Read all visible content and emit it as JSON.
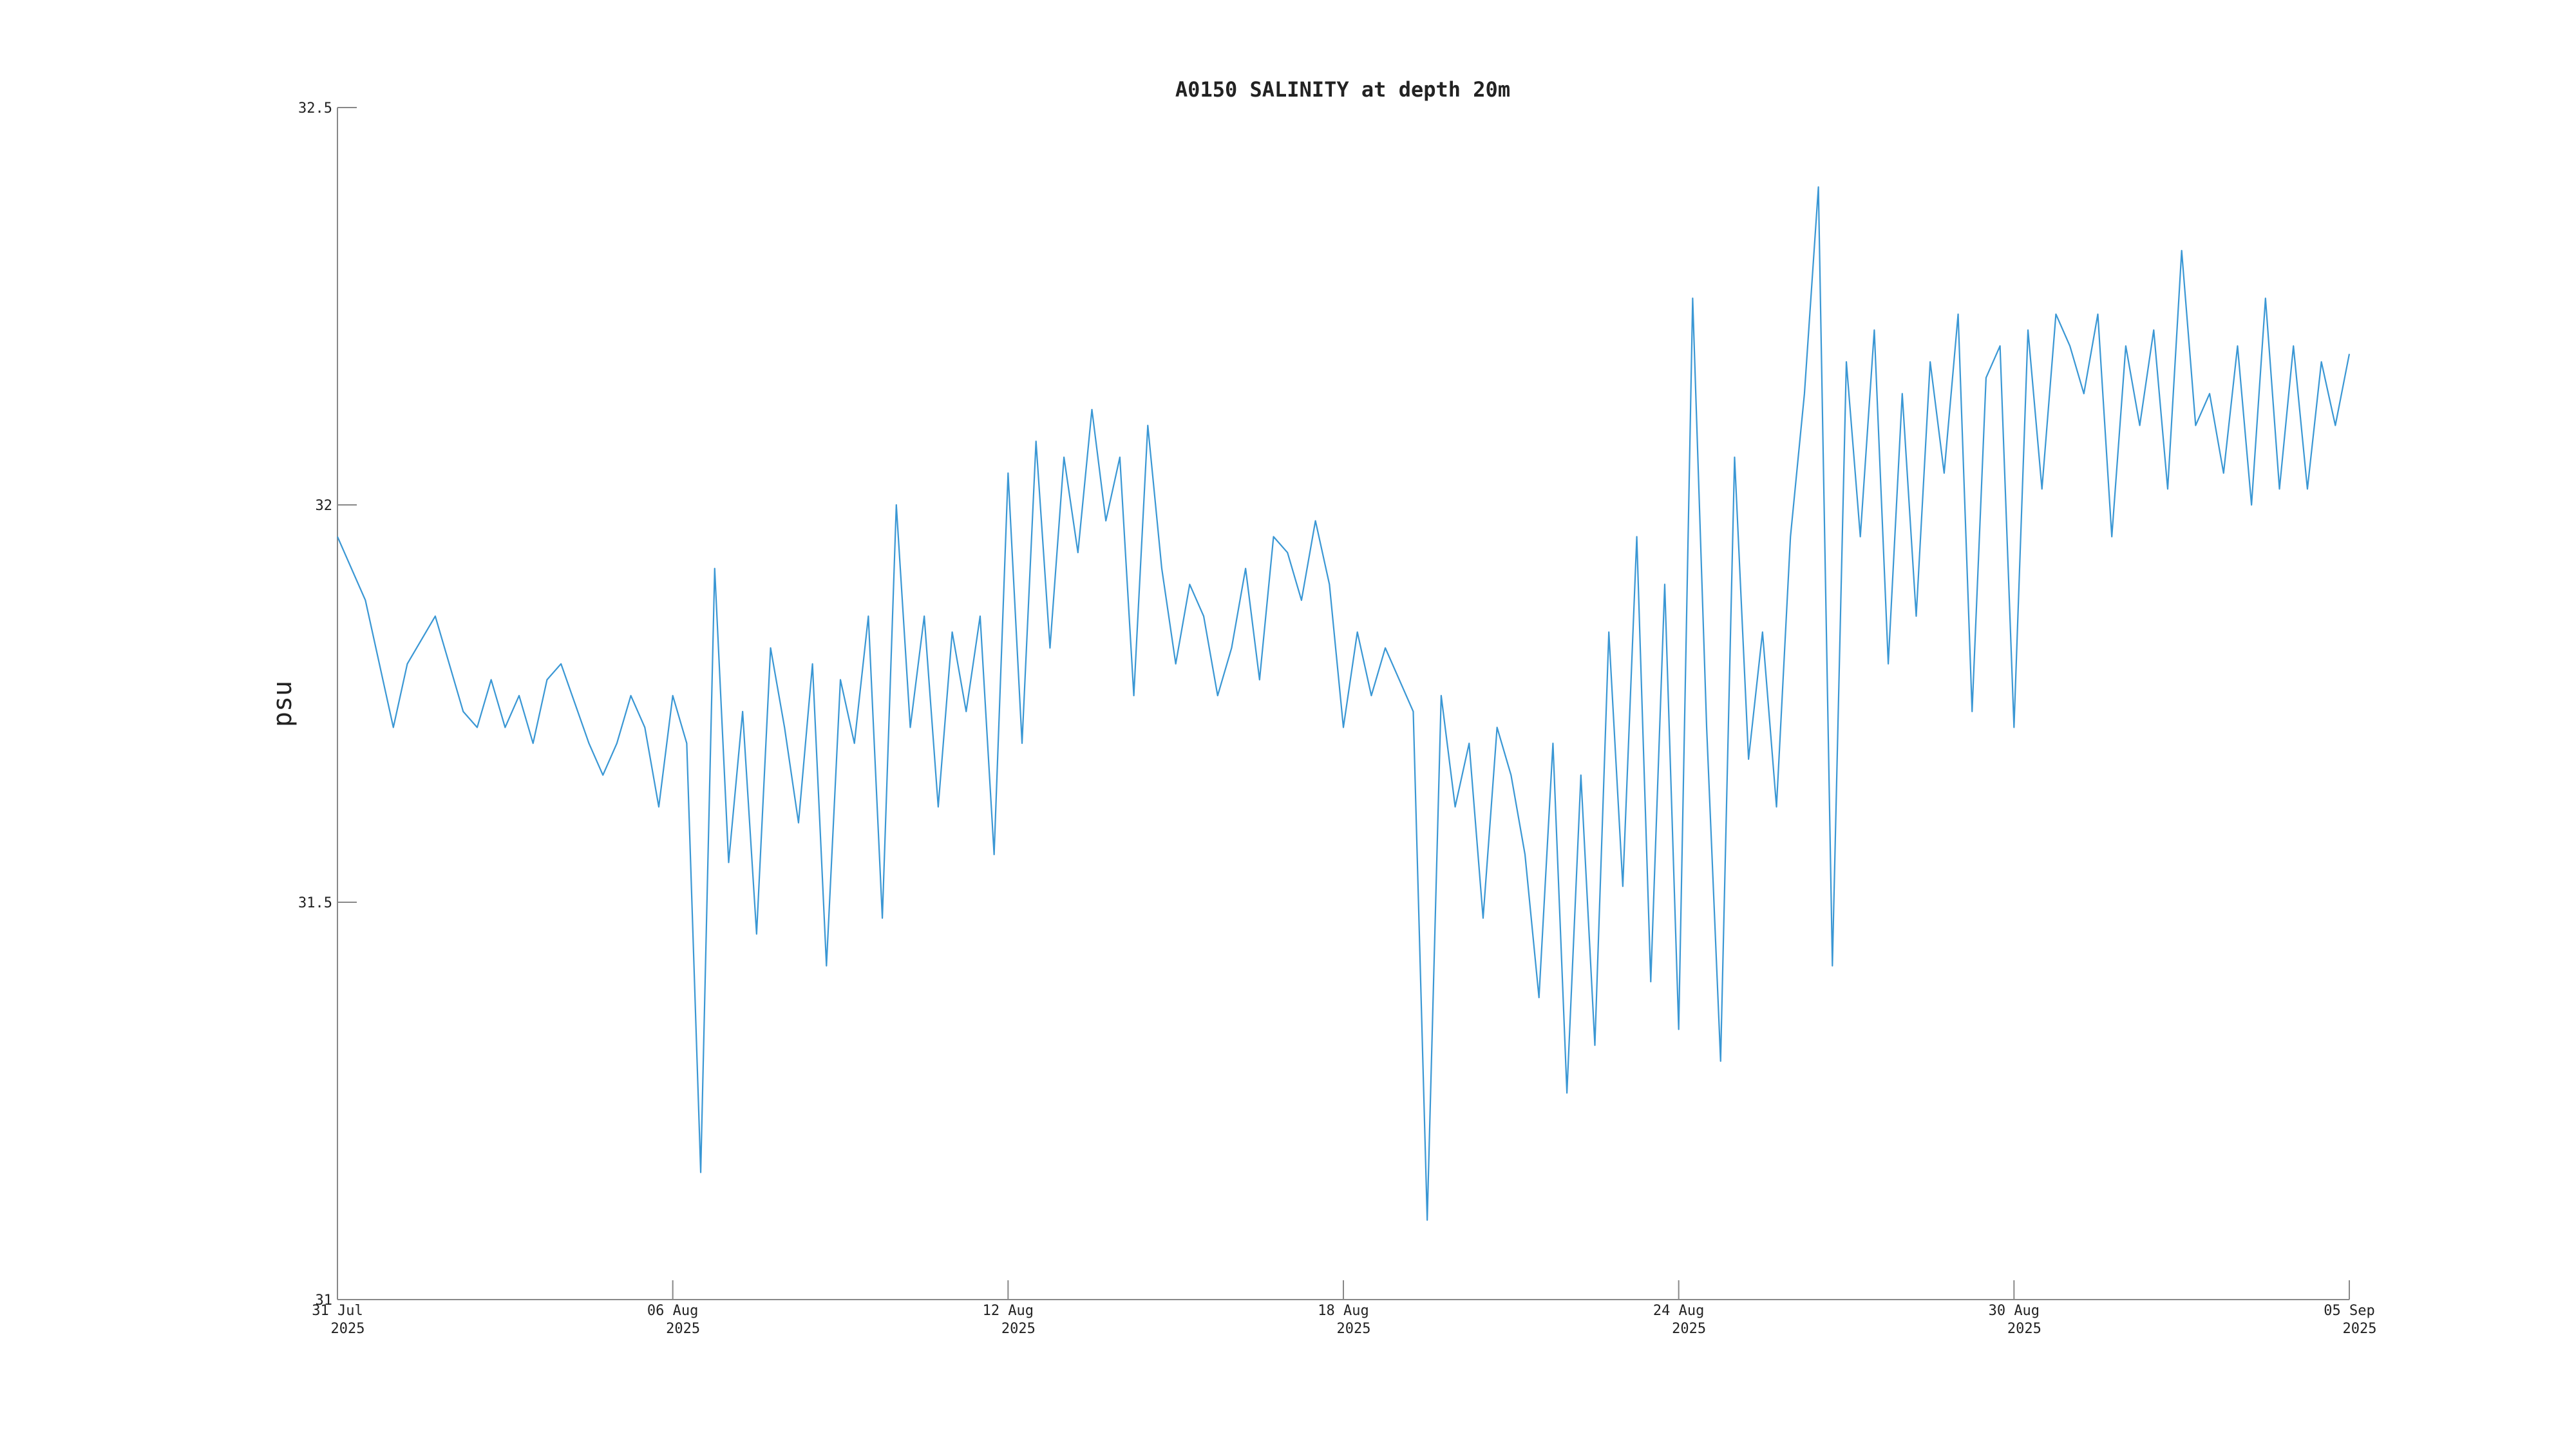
{
  "chart_data": {
    "type": "line",
    "title": "A0150 SALINITY at depth 20m",
    "y_label": "psu",
    "color": "#3a97d4",
    "xlim": [
      "2025-07-31T00:00",
      "2025-09-05T00:00"
    ],
    "xticks": [
      {
        "value": "2025-07-31T00:00",
        "label": [
          "31 Jul",
          "2025"
        ]
      },
      {
        "value": "2025-08-06T00:00",
        "label": [
          "06 Aug",
          "2025"
        ]
      },
      {
        "value": "2025-08-12T00:00",
        "label": [
          "12 Aug",
          "2025"
        ]
      },
      {
        "value": "2025-08-18T00:00",
        "label": [
          "18 Aug",
          "2025"
        ]
      },
      {
        "value": "2025-08-24T00:00",
        "label": [
          "24 Aug",
          "2025"
        ]
      },
      {
        "value": "2025-08-30T00:00",
        "label": [
          "30 Aug",
          "2025"
        ]
      },
      {
        "value": "2025-09-05T00:00",
        "label": [
          "05 Sep",
          "2025"
        ]
      }
    ],
    "ylim": [
      31,
      32.5
    ],
    "yticks": [
      31,
      31.5,
      32,
      32.5
    ],
    "x": [
      "2025-07-31T00:00",
      "2025-07-31T06:00",
      "2025-07-31T12:00",
      "2025-07-31T18:00",
      "2025-08-01T00:00",
      "2025-08-01T06:00",
      "2025-08-01T12:00",
      "2025-08-01T18:00",
      "2025-08-02T00:00",
      "2025-08-02T06:00",
      "2025-08-02T12:00",
      "2025-08-02T18:00",
      "2025-08-03T00:00",
      "2025-08-03T06:00",
      "2025-08-03T12:00",
      "2025-08-03T18:00",
      "2025-08-04T00:00",
      "2025-08-04T06:00",
      "2025-08-04T12:00",
      "2025-08-04T18:00",
      "2025-08-05T00:00",
      "2025-08-05T06:00",
      "2025-08-05T12:00",
      "2025-08-05T18:00",
      "2025-08-06T00:00",
      "2025-08-06T06:00",
      "2025-08-06T12:00",
      "2025-08-06T18:00",
      "2025-08-07T00:00",
      "2025-08-07T06:00",
      "2025-08-07T12:00",
      "2025-08-07T18:00",
      "2025-08-08T00:00",
      "2025-08-08T06:00",
      "2025-08-08T12:00",
      "2025-08-08T18:00",
      "2025-08-09T00:00",
      "2025-08-09T06:00",
      "2025-08-09T12:00",
      "2025-08-09T18:00",
      "2025-08-10T00:00",
      "2025-08-10T06:00",
      "2025-08-10T12:00",
      "2025-08-10T18:00",
      "2025-08-11T00:00",
      "2025-08-11T06:00",
      "2025-08-11T12:00",
      "2025-08-11T18:00",
      "2025-08-12T00:00",
      "2025-08-12T06:00",
      "2025-08-12T12:00",
      "2025-08-12T18:00",
      "2025-08-13T00:00",
      "2025-08-13T06:00",
      "2025-08-13T12:00",
      "2025-08-13T18:00",
      "2025-08-14T00:00",
      "2025-08-14T06:00",
      "2025-08-14T12:00",
      "2025-08-14T18:00",
      "2025-08-15T00:00",
      "2025-08-15T06:00",
      "2025-08-15T12:00",
      "2025-08-15T18:00",
      "2025-08-16T00:00",
      "2025-08-16T06:00",
      "2025-08-16T12:00",
      "2025-08-16T18:00",
      "2025-08-17T00:00",
      "2025-08-17T06:00",
      "2025-08-17T12:00",
      "2025-08-17T18:00",
      "2025-08-18T00:00",
      "2025-08-18T06:00",
      "2025-08-18T12:00",
      "2025-08-18T18:00",
      "2025-08-19T00:00",
      "2025-08-19T06:00",
      "2025-08-19T12:00",
      "2025-08-19T18:00",
      "2025-08-20T00:00",
      "2025-08-20T06:00",
      "2025-08-20T12:00",
      "2025-08-20T18:00",
      "2025-08-21T00:00",
      "2025-08-21T06:00",
      "2025-08-21T12:00",
      "2025-08-21T18:00",
      "2025-08-22T00:00",
      "2025-08-22T06:00",
      "2025-08-22T12:00",
      "2025-08-22T18:00",
      "2025-08-23T00:00",
      "2025-08-23T06:00",
      "2025-08-23T12:00",
      "2025-08-23T18:00",
      "2025-08-24T00:00",
      "2025-08-24T06:00",
      "2025-08-24T12:00",
      "2025-08-24T18:00",
      "2025-08-25T00:00",
      "2025-08-25T06:00",
      "2025-08-25T12:00",
      "2025-08-25T18:00",
      "2025-08-26T00:00",
      "2025-08-26T06:00",
      "2025-08-26T12:00",
      "2025-08-26T18:00",
      "2025-08-27T00:00",
      "2025-08-27T06:00",
      "2025-08-27T12:00",
      "2025-08-27T18:00",
      "2025-08-28T00:00",
      "2025-08-28T06:00",
      "2025-08-28T12:00",
      "2025-08-28T18:00",
      "2025-08-29T00:00",
      "2025-08-29T06:00",
      "2025-08-29T12:00",
      "2025-08-29T18:00",
      "2025-08-30T00:00",
      "2025-08-30T06:00",
      "2025-08-30T12:00",
      "2025-08-30T18:00",
      "2025-08-31T00:00",
      "2025-08-31T06:00",
      "2025-08-31T12:00",
      "2025-08-31T18:00",
      "2025-09-01T00:00",
      "2025-09-01T06:00",
      "2025-09-01T12:00",
      "2025-09-01T18:00",
      "2025-09-02T00:00",
      "2025-09-02T06:00",
      "2025-09-02T12:00",
      "2025-09-02T18:00",
      "2025-09-03T00:00",
      "2025-09-03T06:00",
      "2025-09-03T12:00",
      "2025-09-03T18:00",
      "2025-09-04T00:00",
      "2025-09-04T06:00",
      "2025-09-04T12:00",
      "2025-09-04T18:00",
      "2025-09-05T00:00"
    ],
    "values": [
      31.96,
      31.92,
      31.88,
      31.8,
      31.72,
      31.8,
      31.83,
      31.86,
      31.8,
      31.74,
      31.72,
      31.78,
      31.72,
      31.76,
      31.7,
      31.78,
      31.8,
      31.75,
      31.7,
      31.66,
      31.7,
      31.76,
      31.72,
      31.62,
      31.76,
      31.7,
      31.16,
      31.92,
      31.55,
      31.74,
      31.46,
      31.82,
      31.72,
      31.6,
      31.8,
      31.42,
      31.78,
      31.7,
      31.86,
      31.48,
      32.0,
      31.72,
      31.86,
      31.62,
      31.84,
      31.74,
      31.86,
      31.56,
      32.04,
      31.7,
      32.08,
      31.82,
      32.06,
      31.94,
      32.12,
      31.98,
      32.06,
      31.76,
      32.1,
      31.92,
      31.8,
      31.9,
      31.86,
      31.76,
      31.82,
      31.92,
      31.78,
      31.96,
      31.94,
      31.88,
      31.98,
      31.9,
      31.72,
      31.84,
      31.76,
      31.82,
      31.78,
      31.74,
      31.1,
      31.76,
      31.62,
      31.7,
      31.48,
      31.72,
      31.66,
      31.56,
      31.38,
      31.7,
      31.26,
      31.66,
      31.32,
      31.84,
      31.52,
      31.96,
      31.4,
      31.9,
      31.34,
      32.26,
      31.72,
      31.3,
      32.06,
      31.68,
      31.84,
      31.62,
      31.96,
      32.14,
      32.4,
      31.42,
      32.18,
      31.96,
      32.22,
      31.8,
      32.14,
      31.86,
      32.18,
      32.04,
      32.24,
      31.74,
      32.16,
      32.2,
      31.72,
      32.22,
      32.02,
      32.24,
      32.2,
      32.14,
      32.24,
      31.96,
      32.2,
      32.1,
      32.22,
      32.02,
      32.32,
      32.1,
      32.14,
      32.04,
      32.2,
      32.0,
      32.26,
      32.02,
      32.2,
      32.02,
      32.18,
      32.1,
      32.19
    ]
  }
}
